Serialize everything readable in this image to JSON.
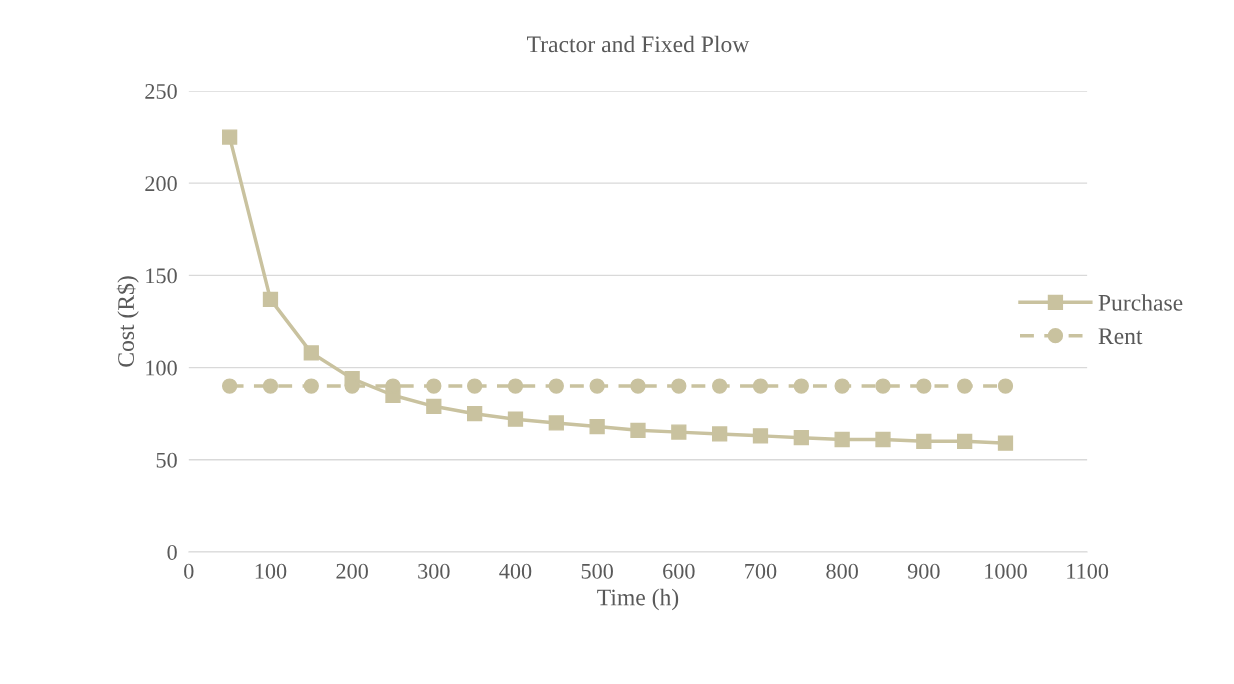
{
  "chart_data": {
    "type": "line",
    "title": "Tractor and Fixed Plow",
    "xlabel": "Time (h)",
    "ylabel": "Cost (R$)",
    "x": [
      50,
      100,
      150,
      200,
      250,
      300,
      350,
      400,
      450,
      500,
      550,
      600,
      650,
      700,
      750,
      800,
      850,
      900,
      950,
      1000
    ],
    "series": [
      {
        "name": "Purchase",
        "color": "#c9c29f",
        "marker": "square",
        "line_style": "solid",
        "values": [
          225,
          137,
          108,
          94,
          85,
          79,
          75,
          72,
          70,
          68,
          66,
          65,
          64,
          63,
          62,
          61,
          61,
          60,
          60,
          59
        ]
      },
      {
        "name": "Rent",
        "color": "#c9c29f",
        "marker": "circle",
        "line_style": "dashed",
        "values": [
          90,
          90,
          90,
          90,
          90,
          90,
          90,
          90,
          90,
          90,
          90,
          90,
          90,
          90,
          90,
          90,
          90,
          90,
          90,
          90
        ]
      }
    ],
    "xlim": [
      0,
      1100
    ],
    "xticks": [
      0,
      100,
      200,
      300,
      400,
      500,
      600,
      700,
      800,
      900,
      1000,
      1100
    ],
    "ylim": [
      0,
      250
    ],
    "yticks": [
      0,
      50,
      100,
      150,
      200,
      250
    ],
    "grid": "y",
    "legend": "right"
  }
}
